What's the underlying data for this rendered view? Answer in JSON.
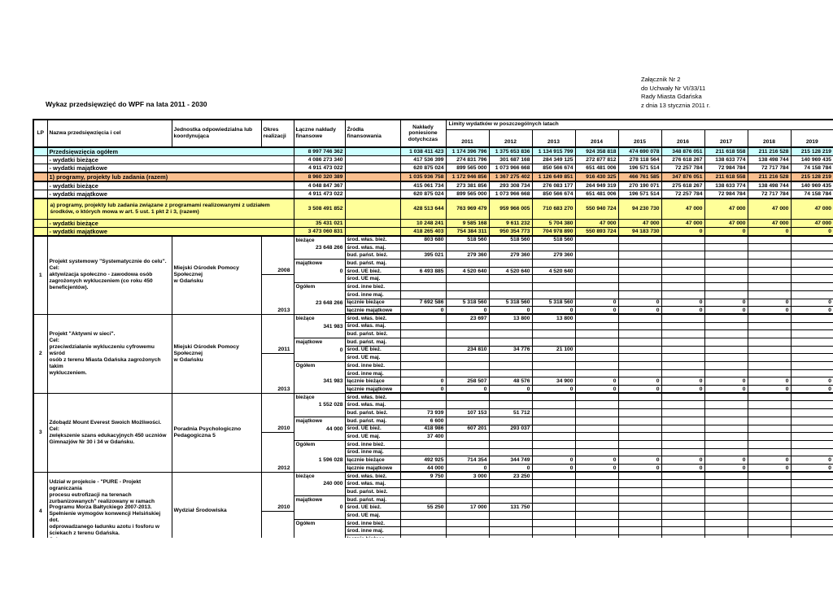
{
  "colors": {
    "summary_total": "#ccffff",
    "programs_total": "#fabf8f",
    "eu_programs": "#ffff99"
  },
  "attachment": {
    "lines": [
      "Załącznik Nr 2",
      "do Uchwały Nr VI/33/11",
      "Rady Miasta Gdańska",
      "z dnia 13 stycznia 2011 r."
    ]
  },
  "title": "Wykaz przedsięwzięć do WPF na lata 2011 - 2030",
  "table": {
    "header": {
      "lp": "LP",
      "name": "Nazwa przedsięwzięcia i cel",
      "unit": "Jednostka odpowiedzialna lub koordynująca",
      "period": "Okres realizacji",
      "total": "Łączne nakłady finansowe",
      "sources": "Źródła finansowania",
      "incurred": "Nakłady poniesione dotychczas",
      "limits": "Limity wydatków w poszczególnych latach",
      "years": [
        "2011",
        "2012",
        "2013",
        "2014",
        "2015",
        "2016",
        "2017",
        "2018",
        "2019"
      ]
    },
    "totals_labels": [
      "bieżące",
      "majątkowe",
      "Ogółem"
    ],
    "source_labels": [
      "środ. włas. bież.",
      "środ. włas. maj.",
      "bud. państ. bież.",
      "bud. państ. maj.",
      "środ. UE bież.",
      "środ. UE maj.",
      "środ. inne bież.",
      "środ. inne maj.",
      "łącznie bieżące",
      "łącznie majątkowe"
    ],
    "summary_rows": [
      {
        "label": "Przedsięwzięcia ogółem",
        "style": "cyan",
        "total_plain": true,
        "total": "8 997 746 362",
        "values": [
          "1 038 411 423",
          "1 174 396 796",
          "1 375 653 836",
          "1 134 915 799",
          "924 358 818",
          "474 690 078",
          "348 876 051",
          "211 618 558",
          "211 216 528",
          "215 128 219"
        ]
      },
      {
        "label": "- wydatki bieżące",
        "style": "",
        "total": "4 086 273 340",
        "values": [
          "417 536 399",
          "274 831 796",
          "301 687 168",
          "284 349 125",
          "272 877 812",
          "278 118 564",
          "276 618 267",
          "138 633 774",
          "138 498 744",
          "140 969 435"
        ]
      },
      {
        "label": "- wydatki majątkowe",
        "style": "",
        "total": "4 911 473 022",
        "values": [
          "620 875 024",
          "899 565 000",
          "1 073 966 668",
          "850 566 674",
          "651 481 006",
          "196 571 514",
          "72 257 784",
          "72 984 784",
          "72 717 784",
          "74 158 784"
        ]
      },
      {
        "label": "1) programy, projekty lub zadania (razem)",
        "style": "orange",
        "total": "8 960 320 389",
        "values": [
          "1 035 936 758",
          "1 172 946 856",
          "1 367 275 402",
          "1 126 649 851",
          "916 430 325",
          "466 761 585",
          "347 876 051",
          "211 618 558",
          "211 216 528",
          "215 128 219"
        ]
      },
      {
        "label": "- wydatki bieżące",
        "style": "",
        "total": "4 048 847 367",
        "values": [
          "415 061 734",
          "273 381 856",
          "293 308 734",
          "276 083 177",
          "264 949 319",
          "270 190 071",
          "275 618 267",
          "138 633 774",
          "138 498 744",
          "140 969 435"
        ]
      },
      {
        "label": "- wydatki majątkowe",
        "style": "",
        "total": "4 911 473 022",
        "values": [
          "620 875 024",
          "899 565 000",
          "1 073 966 668",
          "850 566 674",
          "651 481 006",
          "196 571 514",
          "72 257 784",
          "72 984 784",
          "72 717 784",
          "74 158 784"
        ]
      },
      {
        "label": "a) programy, projekty lub zadania związane z programami realizowanymi z udziałem środków, o których mowa w art. 5 ust. 1 pkt 2 i 3,  (razem)",
        "style": "yellow",
        "tall": true,
        "total": "3 508 491 852",
        "values": [
          "428 513 644",
          "763 969 479",
          "959 966 005",
          "710 683 270",
          "550 940 724",
          "94 230 730",
          "47 000",
          "47 000",
          "47 000",
          "47 000"
        ]
      },
      {
        "label": "- wydatki bieżące",
        "style": "yellow",
        "total": "35 431 021",
        "values": [
          "10 248 241",
          "9 585 168",
          "9 611 232",
          "5 704 380",
          "47 000",
          "47 000",
          "47 000",
          "47 000",
          "47 000",
          "47 000"
        ]
      },
      {
        "label": "- wydatki majątkowe",
        "style": "yellow",
        "section_end": true,
        "total": "3 473 060 831",
        "values": [
          "418 265 403",
          "754 384 311",
          "950 354 773",
          "704 978 890",
          "550 893 724",
          "94 183 730",
          "0",
          "0",
          "0",
          "0"
        ]
      }
    ],
    "projects": [
      {
        "lp": "1",
        "name": "Projekt systemowy \"Systematycznie do celu\".\nCel:\naktywizacja społeczno - zawodowa osób\nzagrożonych wykluczeniem (co roku 450\nbeneficjentów).",
        "unit": "Miejski Ośrodek Pomocy Społecznej\nw Gdańsku",
        "period_start": "2008",
        "period_end": "2013",
        "totals": {
          "biezace": "23 648 266",
          "majatkowe": "0",
          "ogolem": "23 648 266"
        },
        "rows": [
          [
            "803 680",
            "518 560",
            "518 560",
            "518 560",
            "",
            "",
            "",
            "",
            "",
            ""
          ],
          [
            "",
            "",
            "",
            "",
            "",
            "",
            "",
            "",
            "",
            ""
          ],
          [
            "395 021",
            "279 360",
            "279 360",
            "279 360",
            "",
            "",
            "",
            "",
            "",
            ""
          ],
          [
            "",
            "",
            "",
            "",
            "",
            "",
            "",
            "",
            "",
            ""
          ],
          [
            "6 493 885",
            "4 520 640",
            "4 520 640",
            "4 520 640",
            "",
            "",
            "",
            "",
            "",
            ""
          ],
          [
            "",
            "",
            "",
            "",
            "",
            "",
            "",
            "",
            "",
            ""
          ],
          [
            "",
            "",
            "",
            "",
            "",
            "",
            "",
            "",
            "",
            ""
          ],
          [
            "",
            "",
            "",
            "",
            "",
            "",
            "",
            "",
            "",
            ""
          ],
          [
            "7 692 586",
            "5 318 560",
            "5 318 560",
            "5 318 560",
            "0",
            "0",
            "0",
            "0",
            "0",
            "0"
          ],
          [
            "0",
            "0",
            "0",
            "0",
            "0",
            "0",
            "0",
            "0",
            "0",
            "0"
          ]
        ]
      },
      {
        "lp": "2",
        "name": "Projekt \"Aktywni w sieci\".\nCel:\nprzeciwdziałanie wykluczeniu cyfrowemu wśród\nosób z terenu Miasta Gdańska zagrożonych takim\nwykluczeniem.",
        "unit": "Miejski Ośrodek Pomocy Społecznej\nw Gdańsku",
        "period_start": "2011",
        "period_end": "2013",
        "totals": {
          "biezace": "341 983",
          "majatkowe": "0",
          "ogolem": "341 983"
        },
        "rows": [
          [
            "",
            "23 697",
            "13 800",
            "13 800",
            "",
            "",
            "",
            "",
            "",
            ""
          ],
          [
            "",
            "",
            "",
            "",
            "",
            "",
            "",
            "",
            "",
            ""
          ],
          [
            "",
            "",
            "",
            "",
            "",
            "",
            "",
            "",
            "",
            ""
          ],
          [
            "",
            "",
            "",
            "",
            "",
            "",
            "",
            "",
            "",
            ""
          ],
          [
            "",
            "234 810",
            "34 776",
            "21 100",
            "",
            "",
            "",
            "",
            "",
            ""
          ],
          [
            "",
            "",
            "",
            "",
            "",
            "",
            "",
            "",
            "",
            ""
          ],
          [
            "",
            "",
            "",
            "",
            "",
            "",
            "",
            "",
            "",
            ""
          ],
          [
            "",
            "",
            "",
            "",
            "",
            "",
            "",
            "",
            "",
            ""
          ],
          [
            "0",
            "258 507",
            "48 576",
            "34 900",
            "0",
            "0",
            "0",
            "0",
            "0",
            "0"
          ],
          [
            "0",
            "0",
            "0",
            "0",
            "0",
            "0",
            "0",
            "0",
            "0",
            "0"
          ]
        ]
      },
      {
        "lp": "3",
        "name": "Zdobądź Mount Everest Swoich Możliwości.\nCel:\nzwiększenie szans edukacyjnych 450 uczniów\nGimnazjów Nr 30 i 34 w Gdańsku.",
        "unit": "Poradnia Psychologiczno\nPedagogiczna 5",
        "period_start": "2010",
        "period_end": "2012",
        "totals": {
          "biezace": "1 552 028",
          "majatkowe": "44 000",
          "ogolem": "1 596 028"
        },
        "rows": [
          [
            "",
            "",
            "",
            "",
            "",
            "",
            "",
            "",
            "",
            ""
          ],
          [
            "",
            "",
            "",
            "",
            "",
            "",
            "",
            "",
            "",
            ""
          ],
          [
            "73 939",
            "107 153",
            "51 712",
            "",
            "",
            "",
            "",
            "",
            "",
            ""
          ],
          [
            "6 600",
            "",
            "",
            "",
            "",
            "",
            "",
            "",
            "",
            ""
          ],
          [
            "418 986",
            "607 201",
            "293 037",
            "",
            "",
            "",
            "",
            "",
            "",
            ""
          ],
          [
            "37 400",
            "",
            "",
            "",
            "",
            "",
            "",
            "",
            "",
            ""
          ],
          [
            "",
            "",
            "",
            "",
            "",
            "",
            "",
            "",
            "",
            ""
          ],
          [
            "",
            "",
            "",
            "",
            "",
            "",
            "",
            "",
            "",
            ""
          ],
          [
            "492 925",
            "714 354",
            "344 749",
            "0",
            "0",
            "0",
            "0",
            "0",
            "0",
            "0"
          ],
          [
            "44 000",
            "0",
            "0",
            "0",
            "0",
            "0",
            "0",
            "0",
            "0",
            "0"
          ]
        ]
      },
      {
        "lp": "4",
        "name": "Udział w projekcie - \"PURE - Projekt ograniczania\nprocesu eutrofizacji na terenach\nzurbanizowanych\" realizowany w ramach\nProgramu Morza Bałtyckiego 2007-2013.\nSpełnienie wymogów konwencji Helsińskiej dot.\nodprowadzanego ładunku azotu i fosforu w\nściekach z terenu Gdańska.\nCel:",
        "unit": "Wydział Środowiska",
        "period_start": "2010",
        "period_end": "",
        "totals": {
          "biezace": "240 000",
          "majatkowe": "0",
          "ogolem": ""
        },
        "rows": [
          [
            "9 750",
            "3 000",
            "23 250",
            "",
            "",
            "",
            "",
            "",
            "",
            ""
          ],
          [
            "",
            "",
            "",
            "",
            "",
            "",
            "",
            "",
            "",
            ""
          ],
          [
            "",
            "",
            "",
            "",
            "",
            "",
            "",
            "",
            "",
            ""
          ],
          [
            "",
            "",
            "",
            "",
            "",
            "",
            "",
            "",
            "",
            ""
          ],
          [
            "55 250",
            "17 000",
            "131 750",
            "",
            "",
            "",
            "",
            "",
            "",
            ""
          ],
          [
            "",
            "",
            "",
            "",
            "",
            "",
            "",
            "",
            "",
            ""
          ],
          [
            "",
            "",
            "",
            "",
            "",
            "",
            "",
            "",
            "",
            ""
          ],
          [
            "",
            "",
            "",
            "",
            "",
            "",
            "",
            "",
            "",
            ""
          ],
          [
            "",
            "",
            "",
            "",
            "",
            "",
            "",
            "",
            "",
            ""
          ],
          [
            "",
            "",
            "",
            "",
            "",
            "",
            "",
            "",
            "",
            ""
          ]
        ]
      }
    ]
  }
}
